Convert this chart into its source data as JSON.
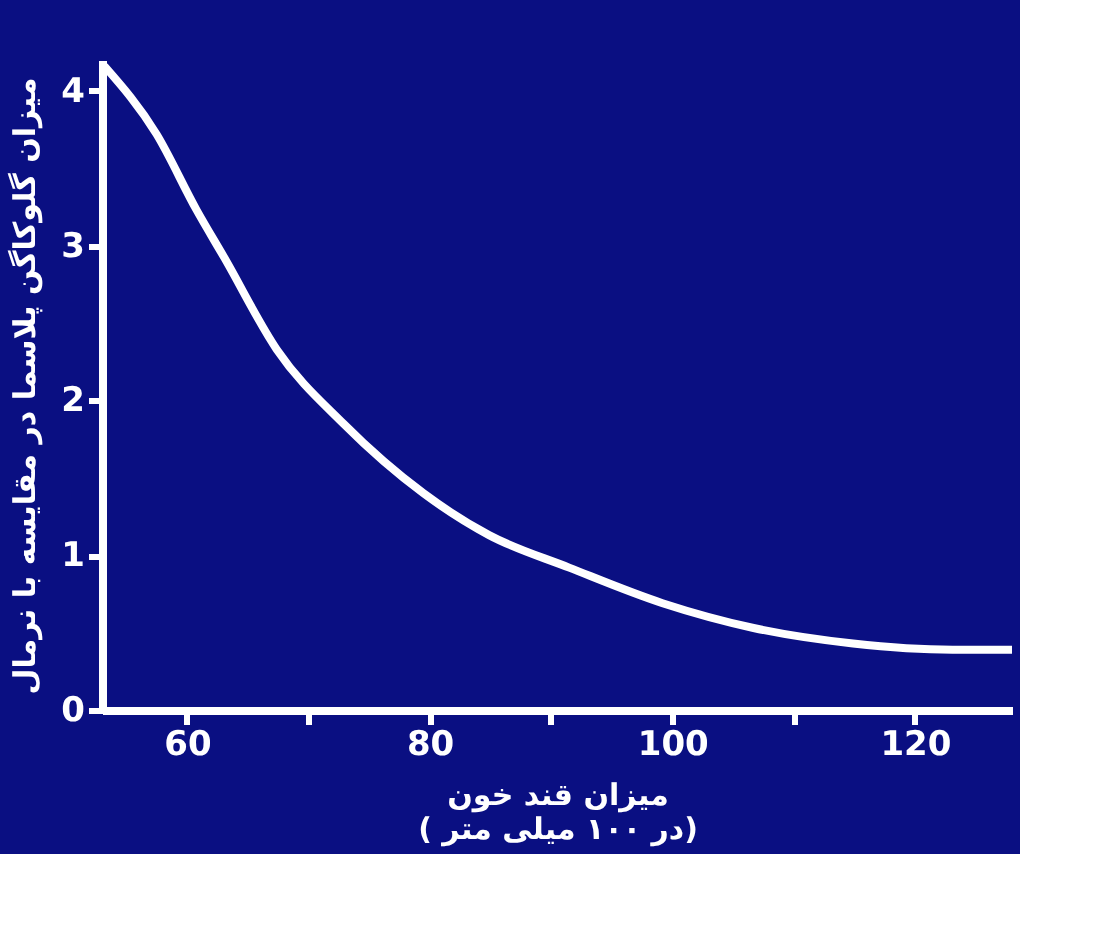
{
  "chart_data": {
    "type": "line",
    "xlabel": "میزان قند خون\n( در ۱۰۰ میلی متر)",
    "ylabel": "میزان گلوکاگن پلاسما در مقایسه با نرمال",
    "x": [
      53.2,
      57.5,
      60.8,
      63.1,
      67.4,
      72.9,
      79.5,
      84.9,
      91.5,
      99.2,
      106.7,
      114.9,
      123.1,
      128
    ],
    "series": [
      {
        "color": "#ffffff",
        "values": [
          4.16,
          3.72,
          3.23,
          2.92,
          2.33,
          1.85,
          1.4,
          1.13,
          0.92,
          0.69,
          0.53,
          0.43,
          0.39,
          0.39
        ]
      }
    ],
    "xlim": [
      53,
      128
    ],
    "ylim": [
      0,
      4.2
    ],
    "xticks": [
      60,
      {
        "value": 70,
        "label": null
      },
      80,
      {
        "value": 90,
        "label": null
      },
      100,
      {
        "value": 110,
        "label": null
      },
      120
    ],
    "yticks": [
      0,
      1,
      2,
      3,
      4
    ],
    "grid": false,
    "marker": "none",
    "line_style": "solid"
  }
}
